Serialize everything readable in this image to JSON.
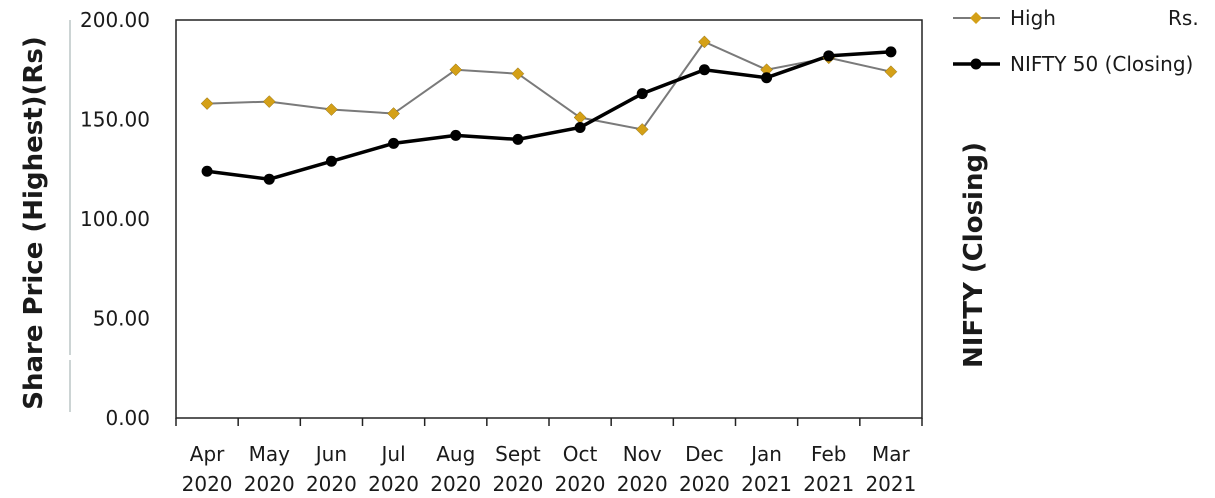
{
  "chart_data": {
    "type": "line",
    "categories": [
      [
        "Apr",
        "2020"
      ],
      [
        "May",
        "2020"
      ],
      [
        "Jun",
        "2020"
      ],
      [
        "Jul",
        "2020"
      ],
      [
        "Aug",
        "2020"
      ],
      [
        "Sept",
        "2020"
      ],
      [
        "Oct",
        "2020"
      ],
      [
        "Nov",
        "2020"
      ],
      [
        "Dec",
        "2020"
      ],
      [
        "Jan",
        "2021"
      ],
      [
        "Feb",
        "2021"
      ],
      [
        "Mar",
        "2021"
      ]
    ],
    "series": [
      {
        "name": "High",
        "color": "#d4a017",
        "line_color": "#7a7a7a",
        "marker": "diamond",
        "values": [
          158,
          159,
          155,
          153,
          175,
          173,
          151,
          145,
          189,
          175,
          181,
          174
        ]
      },
      {
        "name": "NIFTY 50 (Closing)",
        "color": "#000000",
        "line_color": "#000000",
        "marker": "circle",
        "values": [
          124,
          120,
          129,
          138,
          142,
          140,
          146,
          163,
          175,
          171,
          182,
          184
        ]
      }
    ],
    "ylabel": "Share Price (Highest)(Rs)",
    "y2label": "NIFTY (Closing)",
    "legend_extra": "Rs.",
    "ylim": [
      0,
      200
    ],
    "yticks": [
      "0.00",
      "50.00",
      "100.00",
      "150.00",
      "200.00"
    ],
    "grid": false,
    "legend_position": "top-right"
  }
}
